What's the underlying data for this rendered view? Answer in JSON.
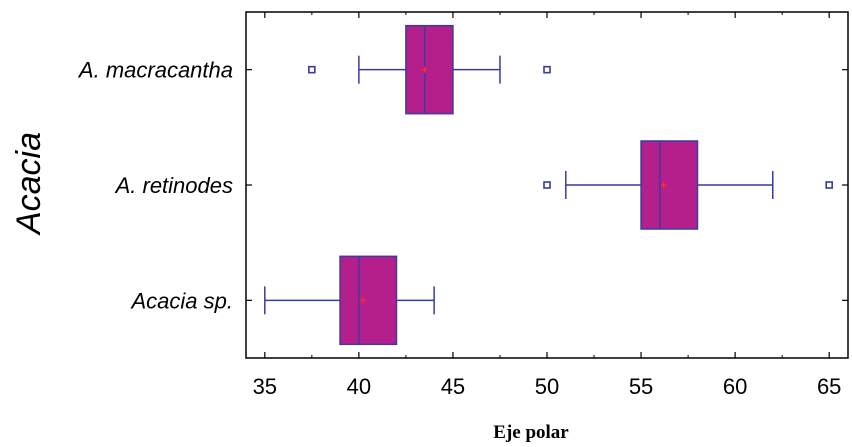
{
  "chart_data": {
    "type": "boxplot",
    "orientation": "horizontal",
    "xlabel": "Eje polar",
    "ylabel": "Acacia",
    "xlim": [
      34,
      66
    ],
    "xticks": [
      35,
      40,
      45,
      50,
      55,
      60,
      65
    ],
    "grid": false,
    "categories": [
      "A. macracantha",
      "A. retinodes",
      "Acacia sp."
    ],
    "boxes": [
      {
        "name": "A. macracantha",
        "whisker_low": 40,
        "q1": 42.5,
        "median": 43.5,
        "mean": 43.5,
        "q3": 45,
        "whisker_high": 47.5,
        "outliers": [
          37.5,
          50
        ]
      },
      {
        "name": "A. retinodes",
        "whisker_low": 51,
        "q1": 55,
        "median": 56,
        "mean": 56.2,
        "q3": 58,
        "whisker_high": 62,
        "outliers": [
          50,
          65
        ]
      },
      {
        "name": "Acacia sp.",
        "whisker_low": 35,
        "q1": 39,
        "median": 40,
        "mean": 40.2,
        "q3": 42,
        "whisker_high": 44,
        "outliers": []
      }
    ],
    "colors": {
      "box_fill": "#b41f8c",
      "box_stroke": "#3a3aa0",
      "whisker": "#3a3aa0",
      "mean_marker": "#ff2a2a",
      "outlier": "#3a3aa0"
    }
  }
}
